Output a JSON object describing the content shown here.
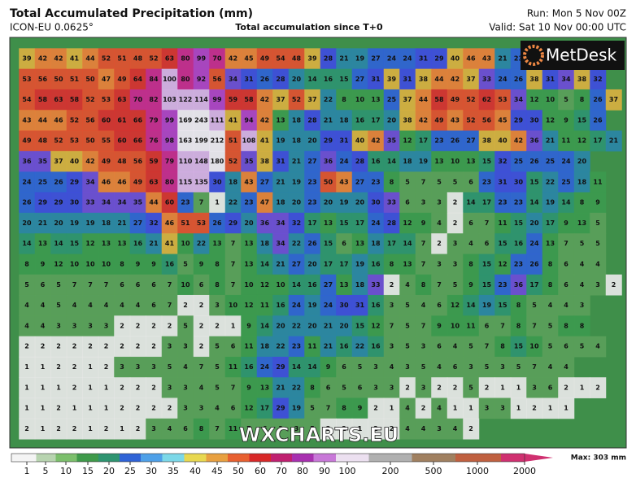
{
  "header": {
    "title": "Total Accumulated Precipitation (mm)",
    "model": "ICON-EU 0.0625°",
    "subtitle": "Total accumulation since T+0",
    "run": "Run: Mon 5 Nov 00Z",
    "valid": "Valid: Sat 10 Nov 00:00 UTC"
  },
  "logo": "MetDesk",
  "watermark": "WXCHARTS.EU",
  "colorbar": {
    "labels": [
      1,
      5,
      10,
      15,
      20,
      25,
      30,
      35,
      40,
      45,
      50,
      60,
      70,
      80,
      90,
      100,
      200,
      500,
      1000,
      2000
    ],
    "max_label": "Max: 303 mm"
  },
  "grid": {
    "rows": [
      [
        39,
        42,
        42,
        41,
        44,
        52,
        51,
        48,
        52,
        63,
        80,
        99,
        70,
        42,
        45,
        49,
        54,
        48,
        39,
        28,
        21,
        19,
        27,
        24,
        24,
        31,
        29,
        40,
        46,
        43,
        21,
        23
      ],
      [
        53,
        56,
        50,
        51,
        50,
        47,
        49,
        64,
        84,
        100,
        80,
        92,
        56,
        34,
        31,
        26,
        28,
        20,
        14,
        16,
        15,
        27,
        31,
        39,
        31,
        38,
        44,
        42,
        37,
        33,
        24,
        26,
        38,
        31,
        34,
        38,
        32
      ],
      [
        54,
        58,
        63,
        58,
        52,
        53,
        63,
        70,
        82,
        103,
        122,
        114,
        99,
        59,
        58,
        42,
        37,
        52,
        37,
        22,
        8,
        10,
        13,
        25,
        37,
        44,
        58,
        49,
        52,
        62,
        53,
        34,
        12,
        10,
        5,
        8,
        26,
        37
      ],
      [
        43,
        44,
        46,
        52,
        56,
        60,
        61,
        66,
        79,
        99,
        169,
        243,
        111,
        41,
        94,
        42,
        13,
        18,
        28,
        21,
        18,
        16,
        17,
        20,
        38,
        42,
        49,
        43,
        52,
        56,
        45,
        29,
        30,
        12,
        9,
        15,
        26
      ],
      [
        49,
        48,
        52,
        53,
        50,
        55,
        60,
        66,
        76,
        98,
        163,
        199,
        212,
        51,
        108,
        41,
        19,
        18,
        20,
        29,
        31,
        40,
        42,
        35,
        12,
        17,
        23,
        26,
        27,
        38,
        40,
        42,
        36,
        21,
        11,
        12,
        17,
        21
      ],
      [
        36,
        35,
        37,
        40,
        42,
        49,
        48,
        56,
        59,
        79,
        110,
        148,
        180,
        52,
        35,
        38,
        31,
        21,
        27,
        36,
        24,
        28,
        16,
        14,
        18,
        19,
        13,
        10,
        13,
        15,
        32,
        25,
        26,
        25,
        24,
        20
      ],
      [
        24,
        25,
        26,
        29,
        34,
        46,
        46,
        49,
        63,
        80,
        115,
        135,
        30,
        18,
        43,
        27,
        21,
        19,
        23,
        50,
        43,
        27,
        23,
        8,
        5,
        7,
        5,
        5,
        6,
        23,
        31,
        30,
        15,
        22,
        25,
        18,
        11
      ],
      [
        26,
        29,
        29,
        30,
        33,
        34,
        34,
        35,
        44,
        60,
        23,
        7,
        1,
        22,
        23,
        47,
        18,
        20,
        23,
        20,
        19,
        20,
        30,
        33,
        6,
        3,
        3,
        2,
        14,
        17,
        23,
        23,
        14,
        19,
        14,
        8,
        9
      ],
      [
        20,
        21,
        20,
        19,
        19,
        18,
        21,
        27,
        32,
        46,
        51,
        53,
        26,
        29,
        20,
        36,
        34,
        32,
        17,
        13,
        15,
        17,
        24,
        28,
        12,
        9,
        4,
        2,
        6,
        7,
        11,
        15,
        20,
        17,
        9,
        13,
        5
      ],
      [
        14,
        13,
        14,
        15,
        12,
        13,
        13,
        16,
        21,
        41,
        10,
        22,
        13,
        7,
        13,
        18,
        34,
        22,
        26,
        15,
        6,
        13,
        18,
        17,
        14,
        7,
        2,
        3,
        4,
        6,
        15,
        16,
        24,
        13,
        7,
        5,
        5
      ],
      [
        8,
        9,
        12,
        10,
        10,
        10,
        8,
        9,
        9,
        16,
        5,
        9,
        8,
        7,
        13,
        14,
        21,
        27,
        20,
        17,
        17,
        19,
        16,
        8,
        13,
        7,
        3,
        3,
        8,
        15,
        12,
        23,
        26,
        8,
        6,
        4,
        4
      ],
      [
        5,
        6,
        5,
        7,
        7,
        7,
        6,
        6,
        6,
        7,
        10,
        6,
        8,
        7,
        10,
        12,
        10,
        14,
        16,
        27,
        13,
        18,
        33,
        2,
        4,
        8,
        7,
        5,
        9,
        15,
        23,
        36,
        17,
        8,
        6,
        4,
        3,
        2
      ],
      [
        4,
        4,
        5,
        4,
        4,
        4,
        4,
        4,
        6,
        7,
        2,
        2,
        3,
        10,
        12,
        11,
        16,
        24,
        19,
        24,
        30,
        31,
        16,
        3,
        5,
        4,
        6,
        12,
        14,
        19,
        15,
        8,
        5,
        4,
        4,
        3
      ],
      [
        4,
        4,
        3,
        3,
        3,
        3,
        2,
        2,
        2,
        2,
        5,
        2,
        2,
        1,
        9,
        14,
        20,
        22,
        20,
        21,
        20,
        15,
        12,
        7,
        5,
        7,
        9,
        10,
        11,
        6,
        7,
        8,
        7,
        5,
        8,
        8
      ],
      [
        2,
        2,
        2,
        2,
        2,
        2,
        2,
        2,
        2,
        3,
        3,
        2,
        5,
        6,
        11,
        18,
        22,
        23,
        11,
        21,
        16,
        22,
        16,
        3,
        5,
        3,
        6,
        4,
        5,
        7,
        8,
        15,
        10,
        5,
        6,
        5,
        4
      ],
      [
        1,
        1,
        2,
        2,
        1,
        2,
        3,
        3,
        3,
        5,
        4,
        7,
        5,
        11,
        16,
        24,
        29,
        14,
        14,
        9,
        6,
        5,
        3,
        4,
        3,
        5,
        4,
        6,
        3,
        5,
        3,
        5,
        7,
        4,
        4
      ],
      [
        1,
        1,
        1,
        2,
        1,
        1,
        2,
        2,
        2,
        3,
        3,
        4,
        5,
        7,
        9,
        13,
        21,
        22,
        8,
        6,
        5,
        6,
        3,
        3,
        2,
        3,
        2,
        2,
        5,
        2,
        1,
        1,
        3,
        6,
        2,
        1,
        2
      ],
      [
        1,
        1,
        2,
        1,
        1,
        1,
        2,
        2,
        2,
        2,
        3,
        3,
        4,
        6,
        12,
        17,
        29,
        19,
        5,
        7,
        8,
        9,
        2,
        1,
        4,
        2,
        4,
        1,
        1,
        3,
        3,
        1,
        2,
        1,
        1
      ],
      [
        2,
        1,
        2,
        2,
        1,
        2,
        1,
        2,
        3,
        4,
        6,
        8,
        7,
        11,
        7,
        6,
        3,
        3,
        5,
        2,
        2,
        1,
        2,
        2,
        4,
        4,
        3,
        4,
        2
      ]
    ]
  }
}
